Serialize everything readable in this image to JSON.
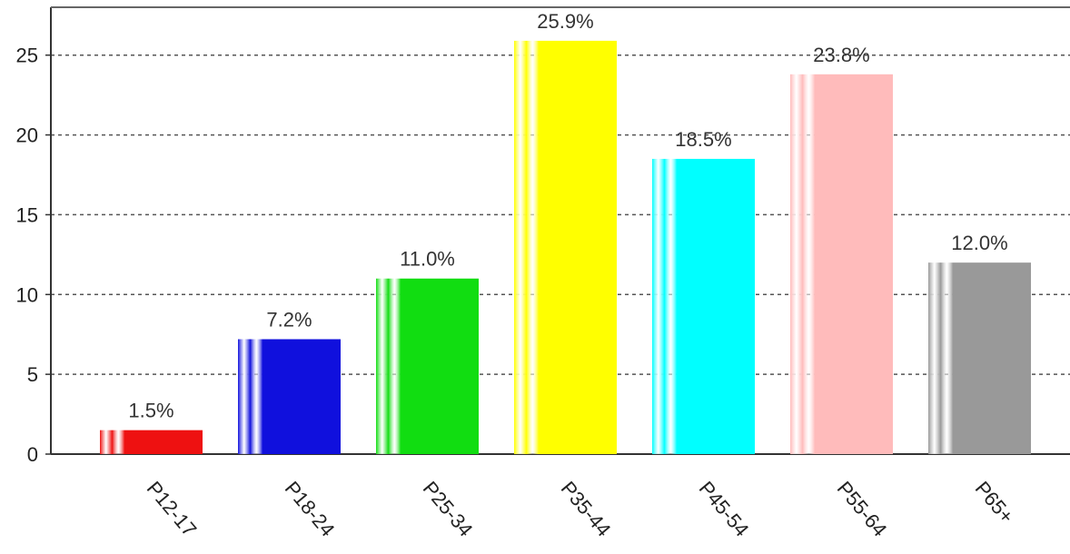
{
  "chart_data": {
    "type": "bar",
    "title": "",
    "xlabel": "",
    "ylabel": "",
    "categories": [
      "P12-17",
      "P18-24",
      "P25-34",
      "P35-44",
      "P45-54",
      "P55-64",
      "P65+"
    ],
    "values": [
      1.5,
      7.2,
      11.0,
      25.9,
      18.5,
      23.8,
      12.0
    ],
    "value_labels": [
      "1.5%",
      "7.2%",
      "11.0%",
      "25.9%",
      "18.5%",
      "23.8%",
      "12.0%"
    ],
    "colors": [
      "#ee1111",
      "#1010dd",
      "#11dd11",
      "#ffff00",
      "#00ffff",
      "#ffbbbb",
      "#999999"
    ],
    "yticks": [
      0,
      5,
      10,
      15,
      20,
      25
    ],
    "ytick_labels": [
      "0",
      "5",
      "10",
      "15",
      "20",
      "25"
    ],
    "ylim": [
      0,
      28
    ],
    "grid": true,
    "legend": "none"
  }
}
